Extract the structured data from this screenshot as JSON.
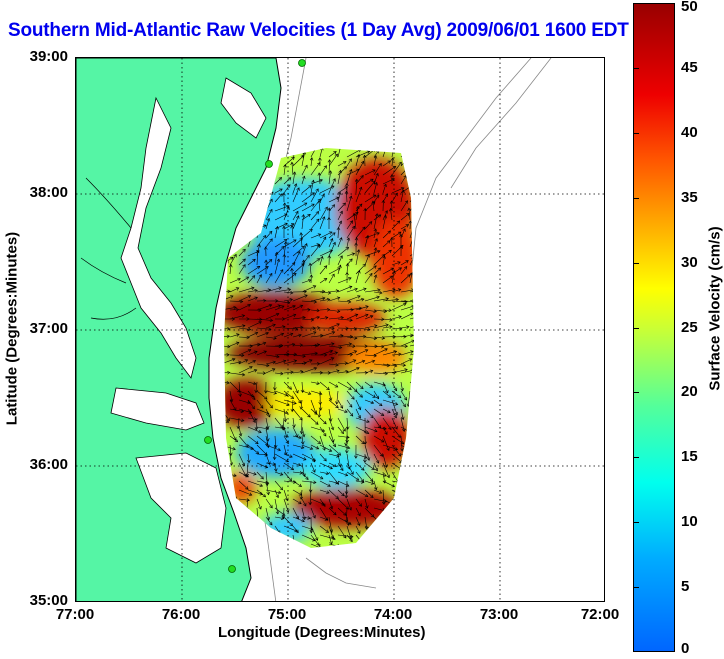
{
  "title": "Southern Mid-Atlantic Raw Velocities (1 Day Avg) 2009/06/01 1600 EDT",
  "map": {
    "lon_ticks": [
      "77:00",
      "76:00",
      "75:00",
      "74:00",
      "73:00",
      "72:00"
    ],
    "lat_ticks": [
      "39:00",
      "38:00",
      "37:00",
      "36:00",
      "35:00"
    ],
    "xlabel": "Longitude (Degrees:Minutes)",
    "ylabel": "Latitude (Degrees:Minutes)",
    "lon_range": [
      -77,
      -72
    ],
    "lat_range": [
      35,
      39
    ],
    "grid": "dotted",
    "land_color": "#55f5a5",
    "coastline_color": "#000000",
    "bathymetry_color": "#888888",
    "station_marker_color": "#22dd22"
  },
  "colorbar": {
    "label": "Surface Velocity (cm/s)",
    "ticks": [
      "0",
      "5",
      "10",
      "15",
      "20",
      "25",
      "30",
      "35",
      "40",
      "45",
      "50"
    ],
    "range": [
      0,
      50
    ],
    "colormap": "jet",
    "colors": [
      "#0066ff",
      "#00aaff",
      "#00ffee",
      "#55ff99",
      "#ccff33",
      "#ffff00",
      "#ffaa00",
      "#ff5500",
      "#ee0000",
      "#990000"
    ]
  }
}
